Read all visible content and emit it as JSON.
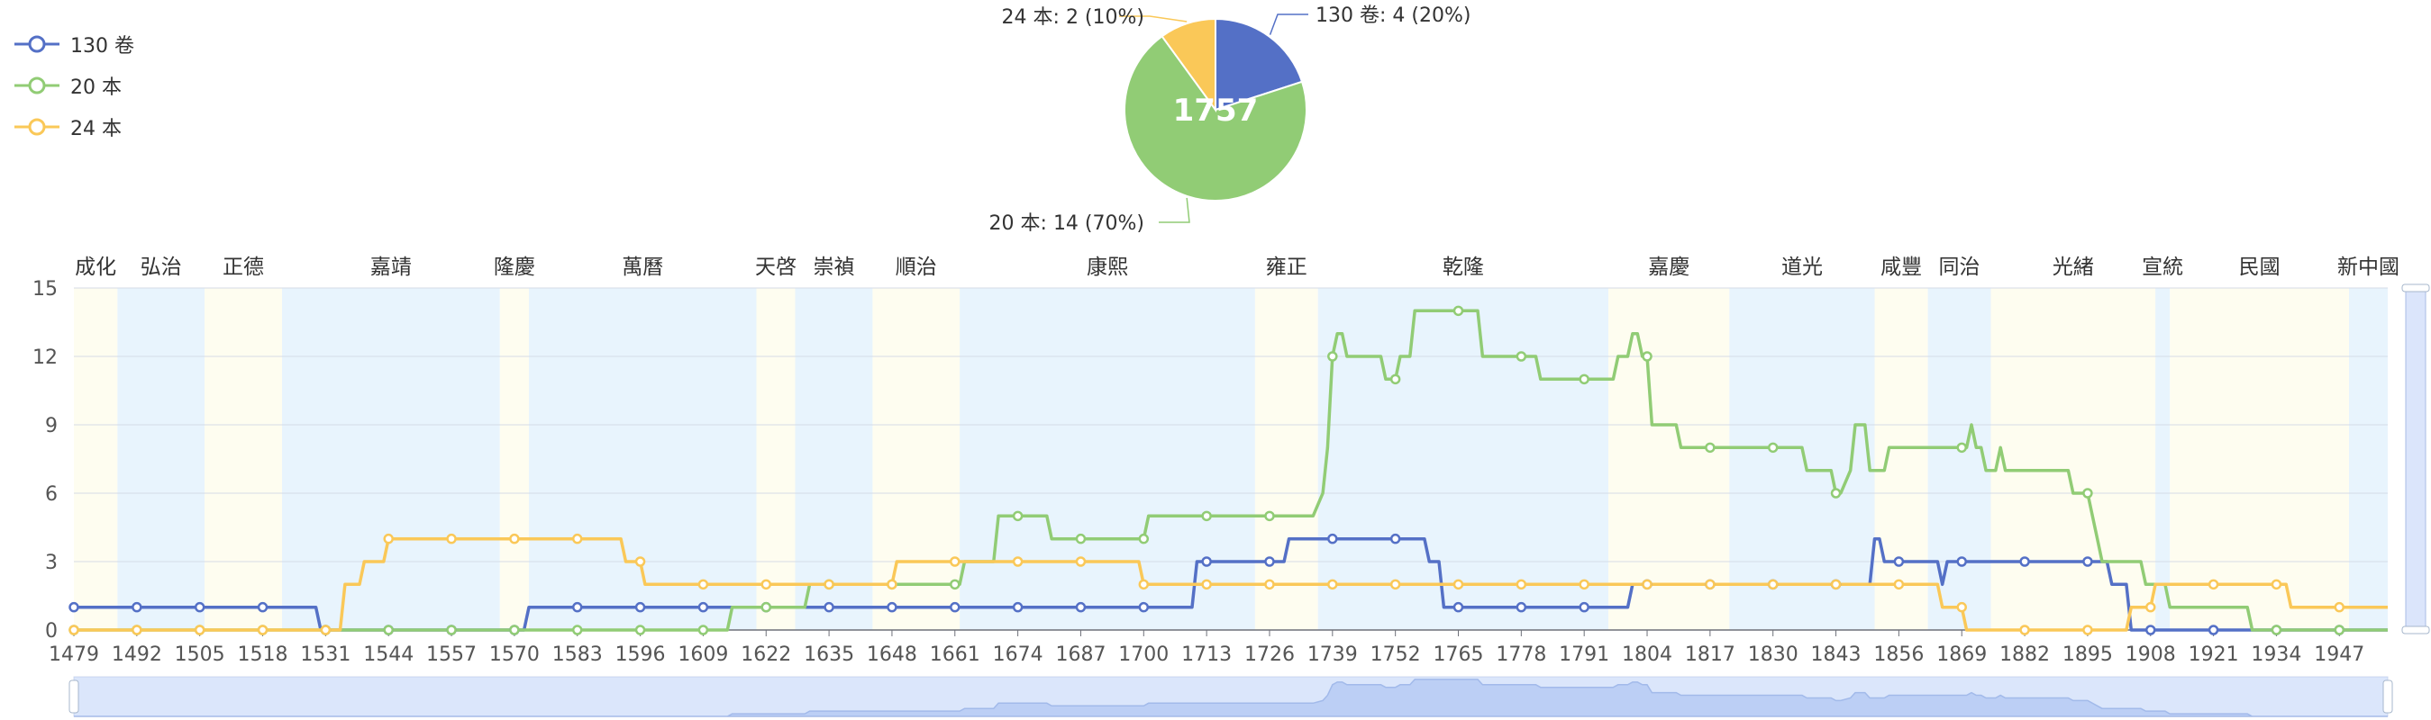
{
  "chart_data": [
    {
      "type": "line",
      "legend": [
        {
          "name": "130 卷",
          "color": "#5470c6"
        },
        {
          "name": "20 本",
          "color": "#91cc75"
        },
        {
          "name": "24 本",
          "color": "#fac858"
        }
      ],
      "legend_placement": "top-left",
      "x_ticks": [
        1479,
        1492,
        1505,
        1518,
        1531,
        1544,
        1557,
        1570,
        1583,
        1596,
        1609,
        1622,
        1635,
        1648,
        1661,
        1674,
        1687,
        1700,
        1713,
        1726,
        1739,
        1752,
        1765,
        1778,
        1791,
        1804,
        1817,
        1830,
        1843,
        1856,
        1869,
        1882,
        1895,
        1908,
        1921,
        1934,
        1947
      ],
      "xlim": [
        1479,
        1957
      ],
      "y_ticks": [
        0,
        3,
        6,
        9,
        12,
        15
      ],
      "ylim": [
        0,
        15
      ],
      "grid": true,
      "eras": [
        {
          "name": "成化",
          "start": 1479,
          "end": 1488,
          "color": "#fefdf0"
        },
        {
          "name": "弘治",
          "start": 1488,
          "end": 1506,
          "color": "#e8f4fd"
        },
        {
          "name": "正德",
          "start": 1506,
          "end": 1522,
          "color": "#fefdf0"
        },
        {
          "name": "嘉靖",
          "start": 1522,
          "end": 1567,
          "color": "#e8f4fd"
        },
        {
          "name": "隆慶",
          "start": 1567,
          "end": 1573,
          "color": "#fefdf0"
        },
        {
          "name": "萬曆",
          "start": 1573,
          "end": 1620,
          "color": "#e8f4fd"
        },
        {
          "name": "天啓",
          "start": 1620,
          "end": 1628,
          "color": "#fefdf0"
        },
        {
          "name": "崇禎",
          "start": 1628,
          "end": 1644,
          "color": "#e8f4fd"
        },
        {
          "name": "順治",
          "start": 1644,
          "end": 1662,
          "color": "#fefdf0"
        },
        {
          "name": "康熙",
          "start": 1662,
          "end": 1723,
          "color": "#e8f4fd"
        },
        {
          "name": "雍正",
          "start": 1723,
          "end": 1736,
          "color": "#fefdf0"
        },
        {
          "name": "乾隆",
          "start": 1736,
          "end": 1796,
          "color": "#e8f4fd"
        },
        {
          "name": "嘉慶",
          "start": 1796,
          "end": 1821,
          "color": "#fefdf0"
        },
        {
          "name": "道光",
          "start": 1821,
          "end": 1851,
          "color": "#e8f4fd"
        },
        {
          "name": "咸豐",
          "start": 1851,
          "end": 1862,
          "color": "#fefdf0"
        },
        {
          "name": "同治",
          "start": 1862,
          "end": 1875,
          "color": "#e8f4fd"
        },
        {
          "name": "光緒",
          "start": 1875,
          "end": 1909,
          "color": "#fefdf0"
        },
        {
          "name": "宣統",
          "start": 1909,
          "end": 1912,
          "color": "#e8f4fd"
        },
        {
          "name": "民國",
          "start": 1912,
          "end": 1949,
          "color": "#fefdf0"
        },
        {
          "name": "新中國",
          "start": 1949,
          "end": 1957,
          "color": "#e8f4fd"
        }
      ],
      "series": [
        {
          "name": "130 卷",
          "color": "#5470c6",
          "points": [
            [
              1479,
              1
            ],
            [
              1492,
              1
            ],
            [
              1505,
              1
            ],
            [
              1518,
              1
            ],
            [
              1529,
              1
            ],
            [
              1530,
              0
            ],
            [
              1531,
              0
            ],
            [
              1544,
              0
            ],
            [
              1557,
              0
            ],
            [
              1570,
              0
            ],
            [
              1572,
              0
            ],
            [
              1573,
              1
            ],
            [
              1583,
              1
            ],
            [
              1596,
              1
            ],
            [
              1609,
              1
            ],
            [
              1622,
              1
            ],
            [
              1635,
              1
            ],
            [
              1648,
              1
            ],
            [
              1661,
              1
            ],
            [
              1674,
              1
            ],
            [
              1687,
              1
            ],
            [
              1700,
              1
            ],
            [
              1710,
              1
            ],
            [
              1711,
              3
            ],
            [
              1713,
              3
            ],
            [
              1726,
              3
            ],
            [
              1729,
              3
            ],
            [
              1730,
              4
            ],
            [
              1739,
              4
            ],
            [
              1752,
              4
            ],
            [
              1758,
              4
            ],
            [
              1759,
              3
            ],
            [
              1761,
              3
            ],
            [
              1762,
              1
            ],
            [
              1765,
              1
            ],
            [
              1778,
              1
            ],
            [
              1791,
              1
            ],
            [
              1800,
              1
            ],
            [
              1801,
              2
            ],
            [
              1804,
              2
            ],
            [
              1817,
              2
            ],
            [
              1830,
              2
            ],
            [
              1843,
              2
            ],
            [
              1850,
              2
            ],
            [
              1851,
              4
            ],
            [
              1852,
              4
            ],
            [
              1853,
              3
            ],
            [
              1856,
              3
            ],
            [
              1862,
              3
            ],
            [
              1864,
              3
            ],
            [
              1865,
              2
            ],
            [
              1866,
              3
            ],
            [
              1869,
              3
            ],
            [
              1882,
              3
            ],
            [
              1895,
              3
            ],
            [
              1899,
              3
            ],
            [
              1900,
              2
            ],
            [
              1903,
              2
            ],
            [
              1904,
              0
            ],
            [
              1908,
              0
            ],
            [
              1921,
              0
            ],
            [
              1934,
              0
            ],
            [
              1947,
              0
            ],
            [
              1957,
              0
            ]
          ]
        },
        {
          "name": "20 本",
          "color": "#91cc75",
          "points": [
            [
              1479,
              0
            ],
            [
              1492,
              0
            ],
            [
              1505,
              0
            ],
            [
              1518,
              0
            ],
            [
              1531,
              0
            ],
            [
              1544,
              0
            ],
            [
              1557,
              0
            ],
            [
              1570,
              0
            ],
            [
              1583,
              0
            ],
            [
              1596,
              0
            ],
            [
              1609,
              0
            ],
            [
              1614,
              0
            ],
            [
              1615,
              1
            ],
            [
              1622,
              1
            ],
            [
              1630,
              1
            ],
            [
              1631,
              2
            ],
            [
              1635,
              2
            ],
            [
              1648,
              2
            ],
            [
              1661,
              2
            ],
            [
              1662,
              2
            ],
            [
              1663,
              3
            ],
            [
              1669,
              3
            ],
            [
              1670,
              5
            ],
            [
              1674,
              5
            ],
            [
              1680,
              5
            ],
            [
              1681,
              4
            ],
            [
              1687,
              4
            ],
            [
              1700,
              4
            ],
            [
              1701,
              5
            ],
            [
              1713,
              5
            ],
            [
              1726,
              5
            ],
            [
              1735,
              5
            ],
            [
              1737,
              6
            ],
            [
              1738,
              8
            ],
            [
              1739,
              12
            ],
            [
              1740,
              13
            ],
            [
              1741,
              13
            ],
            [
              1742,
              12
            ],
            [
              1749,
              12
            ],
            [
              1750,
              11
            ],
            [
              1752,
              11
            ],
            [
              1753,
              12
            ],
            [
              1755,
              12
            ],
            [
              1756,
              14
            ],
            [
              1765,
              14
            ],
            [
              1769,
              14
            ],
            [
              1770,
              12
            ],
            [
              1774,
              12
            ],
            [
              1778,
              12
            ],
            [
              1781,
              12
            ],
            [
              1782,
              11
            ],
            [
              1791,
              11
            ],
            [
              1797,
              11
            ],
            [
              1798,
              12
            ],
            [
              1800,
              12
            ],
            [
              1801,
              13
            ],
            [
              1802,
              13
            ],
            [
              1803,
              12
            ],
            [
              1804,
              12
            ],
            [
              1805,
              9
            ],
            [
              1810,
              9
            ],
            [
              1811,
              8
            ],
            [
              1817,
              8
            ],
            [
              1830,
              8
            ],
            [
              1836,
              8
            ],
            [
              1837,
              7
            ],
            [
              1842,
              7
            ],
            [
              1843,
              6
            ],
            [
              1844,
              6
            ],
            [
              1846,
              7
            ],
            [
              1847,
              9
            ],
            [
              1849,
              9
            ],
            [
              1850,
              7
            ],
            [
              1853,
              7
            ],
            [
              1854,
              8
            ],
            [
              1869,
              8
            ],
            [
              1870,
              8
            ],
            [
              1871,
              9
            ],
            [
              1872,
              8
            ],
            [
              1873,
              8
            ],
            [
              1874,
              7
            ],
            [
              1876,
              7
            ],
            [
              1877,
              8
            ],
            [
              1878,
              7
            ],
            [
              1891,
              7
            ],
            [
              1892,
              6
            ],
            [
              1895,
              6
            ],
            [
              1897,
              4
            ],
            [
              1898,
              3
            ],
            [
              1906,
              3
            ],
            [
              1907,
              2
            ],
            [
              1910,
              2
            ],
            [
              1911,
              2
            ],
            [
              1912,
              1
            ],
            [
              1928,
              1
            ],
            [
              1929,
              0
            ],
            [
              1934,
              0
            ],
            [
              1947,
              0
            ],
            [
              1957,
              0
            ]
          ]
        },
        {
          "name": "24 本",
          "color": "#fac858",
          "points": [
            [
              1479,
              0
            ],
            [
              1492,
              0
            ],
            [
              1505,
              0
            ],
            [
              1518,
              0
            ],
            [
              1531,
              0
            ],
            [
              1534,
              0
            ],
            [
              1535,
              2
            ],
            [
              1538,
              2
            ],
            [
              1539,
              3
            ],
            [
              1543,
              3
            ],
            [
              1544,
              4
            ],
            [
              1557,
              4
            ],
            [
              1570,
              4
            ],
            [
              1583,
              4
            ],
            [
              1592,
              4
            ],
            [
              1593,
              3
            ],
            [
              1596,
              3
            ],
            [
              1597,
              2
            ],
            [
              1609,
              2
            ],
            [
              1622,
              2
            ],
            [
              1635,
              2
            ],
            [
              1648,
              2
            ],
            [
              1649,
              3
            ],
            [
              1661,
              3
            ],
            [
              1674,
              3
            ],
            [
              1687,
              3
            ],
            [
              1699,
              3
            ],
            [
              1700,
              2
            ],
            [
              1713,
              2
            ],
            [
              1726,
              2
            ],
            [
              1739,
              2
            ],
            [
              1752,
              2
            ],
            [
              1765,
              2
            ],
            [
              1778,
              2
            ],
            [
              1791,
              2
            ],
            [
              1804,
              2
            ],
            [
              1817,
              2
            ],
            [
              1830,
              2
            ],
            [
              1843,
              2
            ],
            [
              1856,
              2
            ],
            [
              1864,
              2
            ],
            [
              1865,
              1
            ],
            [
              1868,
              1
            ],
            [
              1869,
              1
            ],
            [
              1870,
              0
            ],
            [
              1882,
              0
            ],
            [
              1895,
              0
            ],
            [
              1903,
              0
            ],
            [
              1904,
              1
            ],
            [
              1908,
              1
            ],
            [
              1909,
              2
            ],
            [
              1921,
              2
            ],
            [
              1934,
              2
            ],
            [
              1936,
              2
            ],
            [
              1937,
              1
            ],
            [
              1947,
              1
            ],
            [
              1957,
              1
            ]
          ]
        }
      ]
    },
    {
      "type": "pie",
      "center_label": "1757",
      "slices": [
        {
          "name": "130 卷",
          "value": 4,
          "percent": 20,
          "color": "#5470c6",
          "label": "130 卷: 4 (20%)"
        },
        {
          "name": "20 本",
          "value": 14,
          "percent": 70,
          "color": "#91cc75",
          "label": "20 本: 14 (70%)"
        },
        {
          "name": "24 本",
          "value": 2,
          "percent": 10,
          "color": "#fac858",
          "label": "24 本: 2 (10%)"
        }
      ]
    }
  ]
}
